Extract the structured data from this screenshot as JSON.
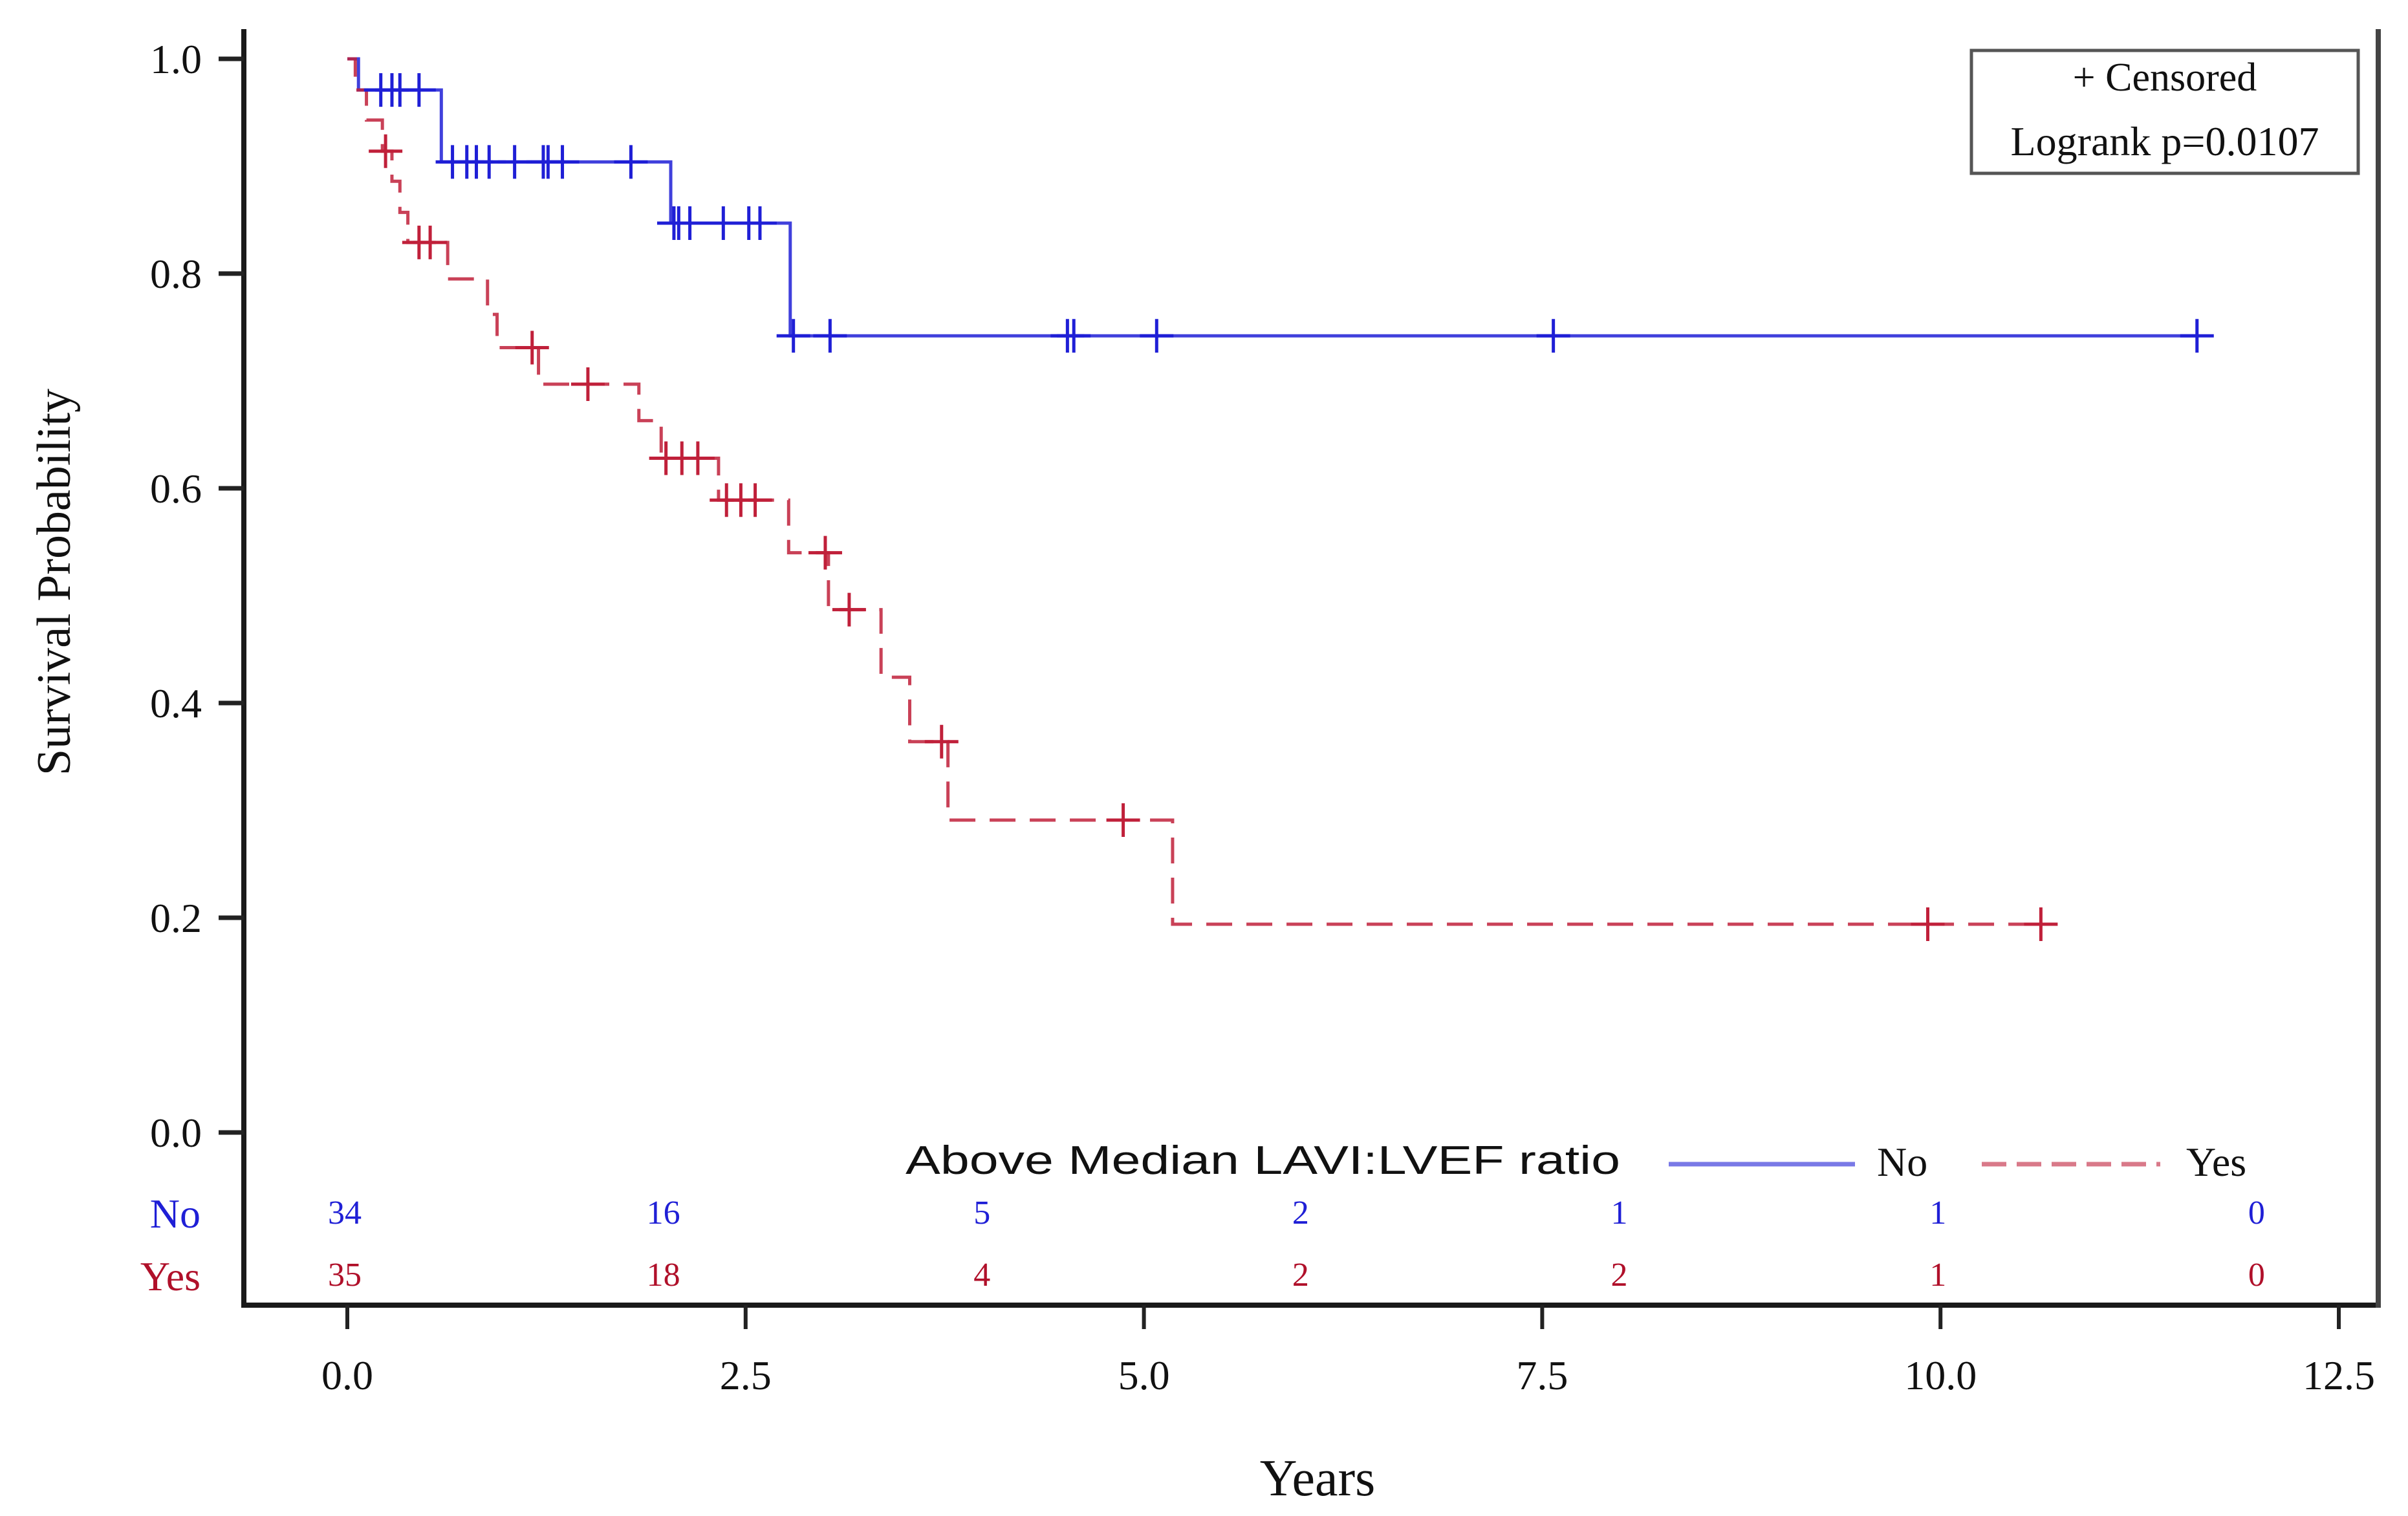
{
  "chart_data": {
    "type": "line",
    "subtype": "kaplan-meier",
    "title": "",
    "xlabel": "Years",
    "ylabel": "Survival Probability",
    "xlim": [
      0,
      12.5
    ],
    "ylim": [
      0,
      1.0
    ],
    "x_ticks": [
      "0.0",
      "2.5",
      "5.0",
      "7.5",
      "10.0",
      "12.5"
    ],
    "y_ticks": [
      "0.0",
      "0.2",
      "0.4",
      "0.6",
      "0.8",
      "1.0"
    ],
    "grid": false,
    "annotation": {
      "censored_label": "+ Censored",
      "logrank_label": "Logrank p=0.0107",
      "placement": "top-right"
    },
    "legend": {
      "title": "Above Median LAVI:LVEF ratio",
      "placement": "bottom",
      "entries": [
        {
          "label": "No",
          "style": "solid"
        },
        {
          "label": "Yes",
          "style": "dashed"
        }
      ]
    },
    "series": [
      {
        "name": "No",
        "color": "#1f1fd6",
        "style": "solid",
        "steps": [
          {
            "t": 0.0,
            "s": 1.0
          },
          {
            "t": 0.07,
            "s": 0.971
          },
          {
            "t": 0.59,
            "s": 0.904
          },
          {
            "t": 2.03,
            "s": 0.847
          },
          {
            "t": 2.78,
            "s": 0.742
          }
        ],
        "end_t": 11.61,
        "censored": [
          0.21,
          0.28,
          0.33,
          0.45,
          0.66,
          0.75,
          0.81,
          0.89,
          1.05,
          1.23,
          1.26,
          1.35,
          1.78,
          2.05,
          2.08,
          2.15,
          2.36,
          2.52,
          2.59,
          2.8,
          3.03,
          4.52,
          4.56,
          5.08,
          7.57,
          11.61
        ]
      },
      {
        "name": "Yes",
        "color": "#c0203a",
        "style": "dashed",
        "steps": [
          {
            "t": 0.0,
            "s": 1.0
          },
          {
            "t": 0.05,
            "s": 0.971
          },
          {
            "t": 0.12,
            "s": 0.943
          },
          {
            "t": 0.22,
            "s": 0.914
          },
          {
            "t": 0.28,
            "s": 0.886
          },
          {
            "t": 0.33,
            "s": 0.857
          },
          {
            "t": 0.38,
            "s": 0.829
          },
          {
            "t": 0.63,
            "s": 0.795
          },
          {
            "t": 0.88,
            "s": 0.762
          },
          {
            "t": 0.94,
            "s": 0.731
          },
          {
            "t": 1.2,
            "s": 0.697
          },
          {
            "t": 1.83,
            "s": 0.663
          },
          {
            "t": 1.97,
            "s": 0.628
          },
          {
            "t": 2.33,
            "s": 0.589
          },
          {
            "t": 2.77,
            "s": 0.54
          },
          {
            "t": 3.02,
            "s": 0.487
          },
          {
            "t": 3.35,
            "s": 0.424
          },
          {
            "t": 3.53,
            "s": 0.364
          },
          {
            "t": 3.77,
            "s": 0.291
          },
          {
            "t": 5.18,
            "s": 0.194
          }
        ],
        "end_t": 10.63,
        "censored": [
          0.24,
          0.45,
          0.52,
          1.16,
          1.51,
          2.0,
          2.1,
          2.2,
          2.38,
          2.47,
          2.56,
          3.0,
          3.15,
          3.73,
          4.87,
          9.92,
          10.63
        ]
      }
    ],
    "risk_table": {
      "times": [
        0,
        2,
        4,
        6,
        8,
        10,
        12
      ],
      "rows": [
        {
          "label": "No",
          "color": "#1f1fd6",
          "values": [
            "34",
            "16",
            "5",
            "2",
            "1",
            "1",
            "0"
          ]
        },
        {
          "label": "Yes",
          "color": "#b0102a",
          "values": [
            "35",
            "18",
            "4",
            "2",
            "2",
            "1",
            "0"
          ]
        }
      ]
    }
  }
}
